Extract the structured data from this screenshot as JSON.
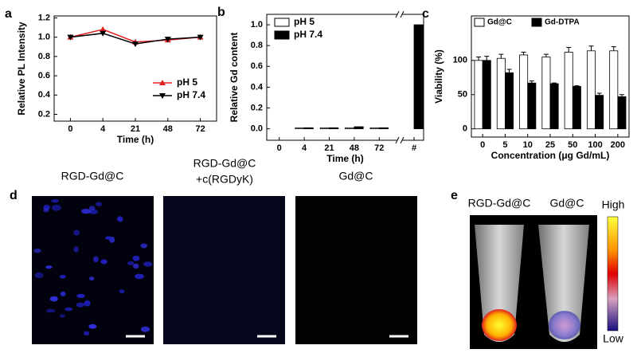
{
  "chart_data": [
    {
      "type": "line",
      "panel": "a",
      "xlabel": "Time (h)",
      "ylabel": "Relative PL Intensity",
      "categories": [
        "0",
        "4",
        "21",
        "48",
        "72"
      ],
      "series": [
        {
          "name": "pH 5",
          "color": "#e02020",
          "marker": "^",
          "values": [
            1.0,
            1.08,
            0.95,
            0.97,
            1.0
          ]
        },
        {
          "name": "pH 7.4",
          "color": "#000000",
          "marker": "v",
          "values": [
            1.0,
            1.04,
            0.93,
            0.98,
            1.0
          ]
        }
      ],
      "ylim": [
        0.13,
        1.22
      ],
      "yticks": [
        0.2,
        0.4,
        0.6,
        0.8,
        {
          "value": 1,
          "label": "1.0"
        },
        1.2
      ],
      "legend": "lower right"
    },
    {
      "type": "bar",
      "panel": "b",
      "xlabel": "Time (h)",
      "ylabel": "Relative Gd content",
      "categories": [
        "0",
        "4",
        "21",
        "48",
        "72",
        "#"
      ],
      "axis_break": true,
      "series": [
        {
          "name": "pH 5",
          "color": "#ffffff",
          "values": [
            0.0,
            0.01,
            0.01,
            0.01,
            0.01,
            null
          ]
        },
        {
          "name": "pH 7.4",
          "color": "#000000",
          "values": [
            0.0,
            0.01,
            0.01,
            0.02,
            0.01,
            1.0
          ]
        }
      ],
      "ylim": [
        -0.11,
        1.1
      ],
      "yticks": [
        {
          "value": 0,
          "label": "0.0"
        },
        0.2,
        0.4,
        0.6,
        0.8,
        {
          "value": 1,
          "label": "1.0"
        }
      ],
      "legend": "upper left"
    },
    {
      "type": "bar",
      "panel": "c",
      "xlabel": "Concentration (μg Gd/mL)",
      "ylabel": "Viability (%)",
      "categories": [
        "0",
        "5",
        "10",
        "25",
        "50",
        "100",
        "200"
      ],
      "series": [
        {
          "name": "Gd@C",
          "color": "#ffffff",
          "values": [
            100,
            103,
            108,
            105,
            112,
            114,
            114
          ],
          "errors": [
            5,
            6,
            4,
            4,
            7,
            7,
            6
          ]
        },
        {
          "name": "Gd-DTPA",
          "color": "#000000",
          "values": [
            100,
            82,
            67,
            66,
            62,
            49,
            47
          ],
          "errors": [
            6,
            5,
            3,
            1,
            1,
            3,
            3
          ]
        }
      ],
      "ylim": [
        -12,
        165
      ],
      "yticks": [
        0,
        50,
        100
      ],
      "legend": "upper center"
    }
  ],
  "panel_d": {
    "panel": "d",
    "images": [
      {
        "lines": [
          "RGD-Gd@C"
        ]
      },
      {
        "lines": [
          "RGD-Gd@C",
          "+c(RGDyK)"
        ]
      },
      {
        "lines": [
          "Gd@C"
        ]
      }
    ]
  },
  "panel_e": {
    "panel": "e",
    "tubes": [
      "RGD-Gd@C",
      "Gd@C"
    ],
    "colorbar_high": "High",
    "colorbar_low": "Low"
  }
}
